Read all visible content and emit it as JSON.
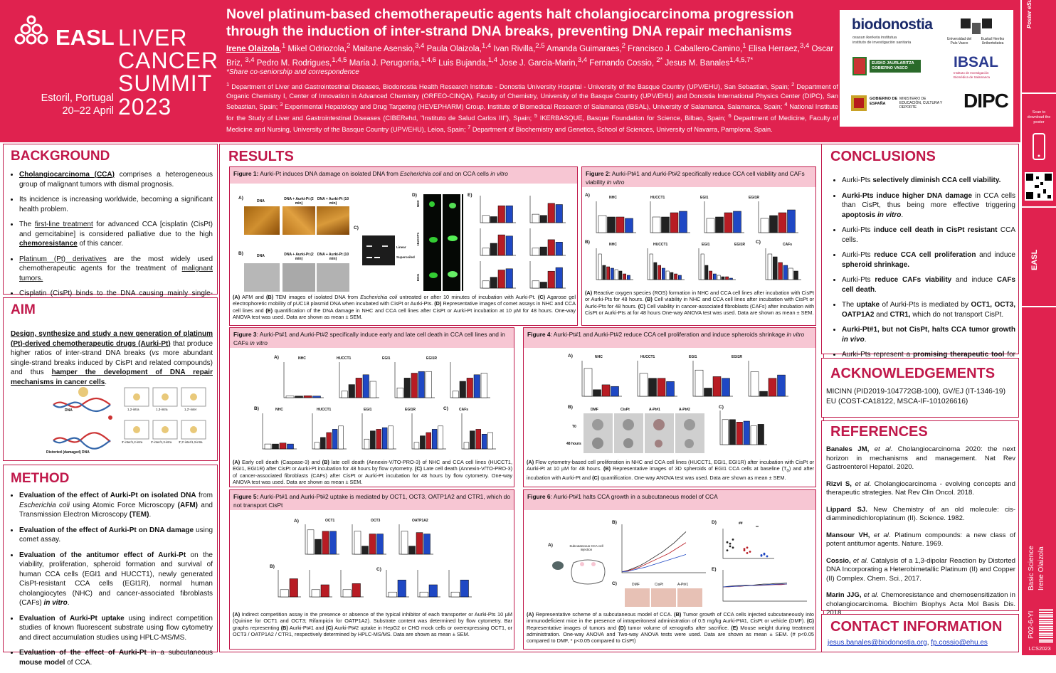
{
  "header": {
    "logo_text": [
      "EASL",
      "LIVER",
      "CANCER",
      "SUMMIT"
    ],
    "location": "Estoril, Portugal",
    "dates": "20–22 April",
    "year": "2023",
    "title": "Novel platinum-based chemotherapeutic agents halt cholangiocarcinoma progression through the induction of inter-strand DNA breaks, preventing DNA repair mechanisms",
    "authors_html": "<u><b>Irene Olaizola</b></u>,<sup>1</sup> Mikel Odriozola,<sup>2</sup> Maitane Asensio,<sup>3,4</sup> Paula Olaizola,<sup>1,4</sup> Ivan Rivilla,<sup>2,5</sup> Amanda Guimaraes,<sup>2</sup>  Francisco J. Caballero-Camino,<sup>1</sup> Elisa Herraez,<sup>3,4</sup> Oscar Briz, <sup>3,4</sup> Pedro M. Rodrigues,<sup>1,4,5</sup> Maria J. Perugorria,<sup>1,4,6</sup> Luis Bujanda,<sup>1,4</sup> Jose J. Garcia-Marin,<sup>3,4</sup> Fernando Cossio, <sup>2*</sup> Jesus M. Banales<sup>1,4,5,7*</sup>",
    "share_note": "*Share co-seniorship and correspondence",
    "affiliations_html": "<sup>1</sup> Department of Liver and Gastrointestinal Diseases, Biodonostia Health Research Institute - Donostia University Hospital - University of the Basque Country (UPV/EHU), San Sebastian, Spain; <sup>2</sup> Department of Organic Chemistry I, Center of Innovation in Advanced Chemistry (ORFEO-CINQA), Faculty of Chemistry, University of the Basque Country (UPV/EHU) and Donostia International Physics Center (DIPC), San Sebastian, Spain; <sup>3</sup> Experimental Hepatology and Drug Targeting (HEVEPHARM) Group, Institute of Biomedical Research of Salamanca (IBSAL), University of Salamanca, Salamanca, Spain; <sup>4</sup> National Institute for the Study of Liver and Gastrointestinal Diseases (CIBERehd, \"Instituto de Salud Carlos III\"), Spain; <sup>5</sup> IKERBASQUE, Basque Foundation for Science, Bilbao, Spain; <sup>6</sup> Department of Medicine, Faculty of Medicine and Nursing, University of the Basque Country (UPV/EHU), Leioa, Spain; <sup>7</sup> Department of Biochemistry and Genetics, School of Sciences, University of Navarra, Pamplona, Spain."
  },
  "logos": {
    "biodonostia": "biodonostia",
    "biodonostia_sub1": "osasun ikerketa institutua",
    "biodonostia_sub2": "instituto de investigación sanitaria",
    "upv1": "Universidad del País Vasco",
    "upv2": "Euskal Herriko Unibertsitatea",
    "gv": "EUSKO JAURLARITZA GOBIERNO VASCO",
    "ibsal": "IBSAL",
    "ibsal_sub": "Instituto de Investigación Biomédica de Salamanca",
    "gob": "GOBIERNO DE ESPAÑA",
    "ministerio": "MINISTERIO DE EDUCACIÓN, CULTURA Y DEPORTE",
    "dipc": "DIPC"
  },
  "strip": {
    "poster_top": "Poster",
    "poster_brand": "eSubmission",
    "scan_text": "Scan to download the poster",
    "easl_vertical": "EASL",
    "category1": "Basic Science",
    "category2": "Irene Olaizola",
    "code": "P02-6-YI",
    "lcs": "LCS2023"
  },
  "background": {
    "title": "BACKGROUND",
    "items_html": [
      "<u><b>Cholangiocarcinoma (CCA)</b></u> comprises a heterogeneous group of malignant tumors with dismal prognosis.",
      "Its incidence is increasing worldwide, becoming a significant health problem.",
      "The <u>first-line treatment</u> for advanced CCA [cisplatin (CisPt) and gemcitabine] is considered palliative due to the high <u><b>chemoresistance</b></u> of this cancer.",
      "<u>Platinum (Pt) derivatives</u> are the most widely used chemotherapeutic agents for the treatment of <u>malignant tumors.</u>",
      "Cisplatin (CisPt) binds to the DNA causing mainly single-strand DNA breaks and consequent cancer cell death."
    ]
  },
  "aim": {
    "title": "AIM",
    "text_html": "<b><u>Design, synthesize and study a new generation of platinum (Pt)-derived chemotherapeutic drugs (Aurki-Pt)</u></b> that produce higher ratios of inter-strand DNA breaks (<i>vs</i> more abundant single-strand breaks induced by CisPt and related compounds) and thus <b><u>hamper the development of DNA repair mechanisms in cancer cells</u></b>.",
    "diagram_labels": [
      "DNA",
      "Distorted (damaged) DNA",
      "1,2-intra",
      "1,3-intra",
      "1,2'-inter",
      "3'-inter/1,2-intra",
      "3'-inter/1,3-intra",
      "3',3'-inter/1,3-intra"
    ]
  },
  "method": {
    "title": "METHOD",
    "items_html": [
      "<b>Evaluation of the effect of Aurki-Pt on isolated DNA</b> from <i>Escherichia coli</i> using Atomic Force Microscopy <b>(AFM)</b> and Transmission Electron Microscopy <b>(TEM)</b>.",
      "<b>Evaluation of the effect of Aurki-Pt on DNA damage</b> using comet assay.",
      "<b>Evaluation of the antitumor effect of Aurki-Pt</b> on the viability, proliferation, spheroid formation and survival of human CCA cells (EGI1 and HUCCT1), newly generated CisPt-resistant CCA cells (EGI1R), normal human cholangiocytes (NHC) and cancer-associated fibroblasts (CAFs) <b><i>in vitro</i></b>.",
      "<b>Evaluation of Aurki-Pt uptake</b> using indirect competition studies of known fluorescent substrate using flow cytometry and direct accumulation studies using HPLC-MS/MS.",
      "<b>Evaluation of the effect of Aurki-Pt</b> in a subcutaneous <b>mouse model</b> of CCA."
    ]
  },
  "results": {
    "title": "RESULTS",
    "fig1": {
      "head_html": "<b>Figure 1:</b> Aurki-Pt induces DNA damage on isolated DNA from <i>Escherichia coli</i> and on CCA cells <i>in vitro</i>",
      "labels": [
        "DNA",
        "DNA + Aurki-Pt (2 min)",
        "DNA + Aurki-Pt (10 min)",
        "Linear",
        "Supercoiled",
        "NHC",
        "HUCCT1",
        "EGI1"
      ],
      "caption_html": "<b>(A)</b> AFM and <b>(B)</b> TEM images of isolated DNA from <i>Escherichia coli</i> untreated or after 10 minutes  of incubation with Aurki-Pt. <b>(C)</b> Agarose gel electrophoretic mobility of pUC18 plasmid DNA when incubated with CisPt or Aurki-Pts. <b>(D)</b> Representative images of comet assays in NHC and CCA cell lines and <b>(E)</b> quantification of the DNA damage in NHC and CCA cell lines after CisPt or Aurki-Pt incubation at 10 µM for 48 hours. One-way ANOVA test was used. Data are shown as mean ± SEM."
    },
    "fig2": {
      "head_html": "<b>Figure 2</b>: Aurki-Pt#1 and Aurki-Pt#2 specifically reduce CCA cell viability and CAFs viability <i>in vitro</i>",
      "labels": [
        "NHC",
        "HUCCT1",
        "EGI1",
        "EGI1R",
        "CAFs"
      ],
      "caption_html": "<b>(A)</b> Reactive oxygen species (ROS) formation in NHC and CCA cell lines after incubation with CisPt or Aurki-Pts  for 48 hours.  <b>(B)</b> Cell viability in NHC and CCA cell lines after incubation with CisPt or Aurki-Pts  for 48 hours. <b>(C)</b> Cell viability in cancer-associated fibroblasts (CAFs) after incubation with CisPt or Aurki-Pts at for 48 hours One-way ANOVA test was used. Data are shown as mean ± SEM."
    },
    "fig3": {
      "head_html": "<b>Figure 3</b>: Aurki-Pt#1 and Aurki-Pt#2 specifically induce early and late cell death in CCA cell lines and in CAFs <i>in vitro</i>",
      "labels": [
        "NHC",
        "HUCCT1",
        "EGI1",
        "EGI1R",
        "CAFs"
      ],
      "caption_html": "<b>(A)</b> Early cell death (Caspase-3)  and <b>(B)</b> late cell death (Annexin-V/TO-PRO-3) of NHC and CCA cell lines (HUCCT1, EGI1, EGI1R) after CisPt or Aurki-Pt incubation for 48 hours by flow cytometry. <b>(C)</b> Late cell death (Annexin-V/TO-PRO-3) of cancer-associated fibroblasts (CAFs) after CisPt or Aurki-Pt incubation for 48 hours by flow cytometry. One-way ANOVA test was used. Data are shown as mean ± SEM."
    },
    "fig4": {
      "head_html": "<b>Figure 4</b>: Aurki-Pt#1 and Aurki-Pt#2 reduce CCA cell proliferation and induce spheroids shrinkage <i>in vitro</i>",
      "labels": [
        "NHC",
        "HUCCT1",
        "EGI1",
        "EGI1R",
        "DMF",
        "CisPt",
        "A-Pt#1",
        "A-Pt#2",
        "T0",
        "48 hours"
      ],
      "caption_html": "<b>(A)</b> Flow cytometry-based cell proliferation in NHC and CCA cell lines (HUCCT1, EGI1, EGI1R) after incubation with CisPt or Aurki-Pt at 10 µM for 48 hours. <b>(B)</b> Representative images of 3D spheroids of EGI1 CCA cells at baseline (T<sub>0</sub>) and after incubation with Aurki-Pt and <b>(C)</b> quantification. One-way ANOVA test was used. Data are shown as mean ± SEM."
    },
    "fig5": {
      "head_html": "<b>Figure 5:</b> Aurki-Pt#1 and Aurki-Pt#2 uptake is mediated by OCT1, OCT3, OATP1A2 and CTR1, which do not transport CisPt",
      "labels": [
        "OCT1",
        "OCT3",
        "OATP1A2"
      ],
      "caption_html": "<b>(A)</b> Indirect competition assay in the presence or absence of the typical inhibitor of each transporter or Aurki-Pts 10 µM (Quinine for OCT1 and OCT3; Rifampicin for OATP1A2). Substrate content was determined by flow cytometry. Bar graphs representing <b>(B)</b> Aurki-Pt#1 and <b>(C)</b> Aurki-Pt#2 uptake in HepG2 or CHO mock cells or overexpressing OCT1, or OCT3 / OATP1A2 / CTR1, respectively determined by HPLC-MS/MS. Data are shown as mean ± SEM."
    },
    "fig6": {
      "head_html": "<b>Figure 6</b>: Aurki-Pt#1 halts CCA growth in a subcutaneous model of CCA",
      "labels": [
        "Subcutaneous CCA cell injection",
        "DMF",
        "CisPt",
        "A-Pt#1",
        "##",
        "**"
      ],
      "caption_html": "<b>(A)</b> Representative scheme of a subcutaneous model of CCA. <b>(B)</b> Tumor growth of CCA cells injected subcutaneously into immunodeficient mice in the presence of intraperitoneal administration of 0.5 mg/kg Aurki-Pt#1, CisPt or vehicle (DMF). <b>(C)</b> Representative images of tumors and <b>(D)</b> tumor volume of xenografts after sacrifice. <b>(E)</b> Mouse weight during treatment administration. One-way ANOVA and Two-way ANOVA tests were used. Data are shown as mean ± SEM. (# p&lt;0.05 compared to DMF, * p&lt;0.05 compared  to CisPt)"
    }
  },
  "conclusions": {
    "title": "CONCLUSIONS",
    "items_html": [
      "Aurki-Pts <b>selectively diminish CCA cell viability.</b>",
      "<b>Aurki-Pts induce higher DNA damage</b> in CCA cells than CisPt, thus being more effective triggering <b>apoptosis <i>in vitro</i></b>.",
      "Aurki-Pts <b>induce cell death in CisPt resistant</b> CCA cells.",
      "Aurki-Pts <b>reduce CCA cell proliferation</b> and induce <b>spheroid shrinkage.</b>",
      "Aurki-Pts <b>reduce CAFs viability</b> and induce <b>CAFs cell death</b>.",
      "The <b>uptake</b> of Aurki-Pts is mediated by <b>OCT1, OCT3, OATP1A2</b> and <b>CTR1,</b> which do not transport CisPt.",
      "<b>Aurki-Pt#1, but not CisPt, halts CCA tumor growth <i>in vivo</i></b>.",
      "Aurki-Pts represent a <b>promising therapeutic tool</b> for <u>naïve or CisPt-resistant CCA tumors.</u>"
    ]
  },
  "acknowledgements": {
    "title": "ACKNOWLEDGEMENTS",
    "lines": [
      "MICINN (PID2019-104772GB-100), GV/EJ (IT-1346-19)",
      "EU (COST-CA18122, MSCA-IF-101026616)"
    ]
  },
  "references": {
    "title": "REFERENCES",
    "items_html": [
      "<b>Banales JM,</b> <i>et al</i>. Cholangiocarcinoma 2020: the next horizon in mechanisms and management. Nat Rev Gastroenterol Hepatol. 2020.",
      "<b>Rizvi S,</b> <i>et al</i>. Cholangiocarcinoma - evolving concepts and therapeutic strategies. Nat Rev Clin Oncol. 2018.",
      "<b>Lippard SJ.</b> New Chemistry of an old molecule: cis-diamminedichloroplatinum (II). Science. 1982.",
      "<b>Mansour VH,</b> <i>et al</i>. Platinum compounds: a new class of potent antitumor agents. Nature. 1969.",
      "<b>Cossio,</b> <i>et al.</i> Catalysis of a 1,3-dipolar Reaction by Distorted DNA Incorporating a Heterobimetallic Platinum (II) and Copper (II) Complex. Chem. Sci., 2017.",
      "<b>Marin JJG,</b> <i>et al.</i> Chemoresistance and chemosensitization in cholangiocarcinoma. Biochim Biophys Acta Mol Basis Dis. 2018."
    ]
  },
  "contact": {
    "title": "CONTACT INFORMATION",
    "email1": "jesus.banales@biodonostia.org",
    "email2": "fp.cossio@ehu.es"
  },
  "colors": {
    "accent": "#e0224f",
    "panel_border": "#c0184a",
    "fig_head": "#f7c6d3",
    "red_bar": "#b81c24",
    "blue_bar": "#1f48c4"
  }
}
